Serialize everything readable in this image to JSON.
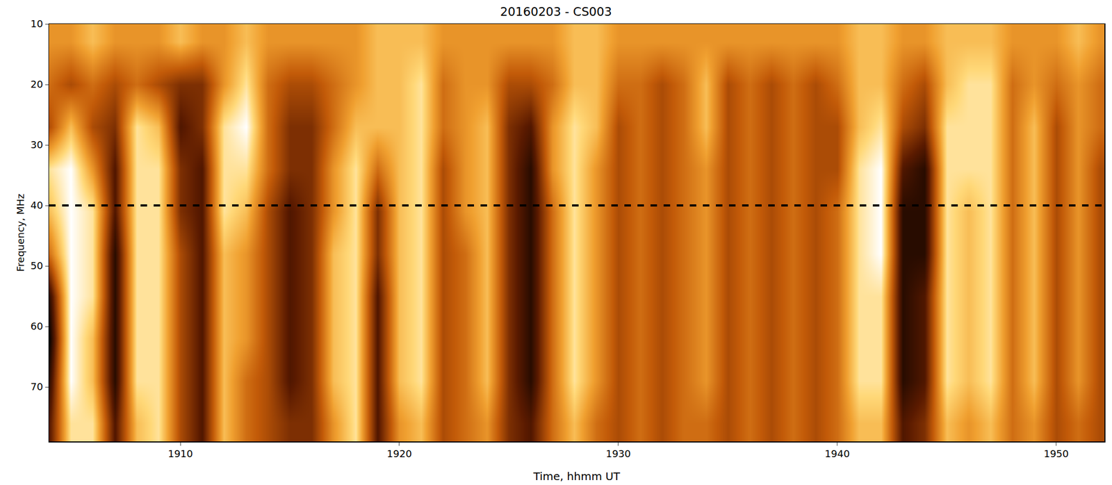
{
  "chart_data": {
    "type": "heatmap",
    "title": "20160203 - CS003",
    "x_label": "Time, hhmm UT",
    "y_label": "Frequency, MHz",
    "x": [
      1904,
      1905,
      1906,
      1907,
      1908,
      1909,
      1910,
      1911,
      1912,
      1913,
      1914,
      1915,
      1916,
      1917,
      1918,
      1919,
      1920,
      1921,
      1922,
      1923,
      1924,
      1925,
      1926,
      1927,
      1928,
      1929,
      1930,
      1931,
      1932,
      1933,
      1934,
      1935,
      1936,
      1937,
      1938,
      1939,
      1940,
      1941,
      1942,
      1943,
      1944,
      1945,
      1946,
      1947,
      1948,
      1949,
      1950,
      1951,
      1952
    ],
    "y": [
      13,
      20,
      27,
      34,
      41,
      48,
      55,
      62,
      69,
      76
    ],
    "cells": [
      [
        6,
        6,
        7,
        6,
        6,
        6,
        7,
        6,
        6,
        7,
        6,
        6,
        6,
        6,
        6,
        7,
        7,
        7,
        6,
        6,
        6,
        6,
        6,
        6,
        7,
        7,
        6,
        6,
        6,
        6,
        6,
        6,
        6,
        6,
        6,
        6,
        6,
        7,
        7,
        6,
        6,
        7,
        7,
        7,
        6,
        6,
        6,
        7,
        6
      ],
      [
        5,
        4,
        5,
        4,
        5,
        4,
        3,
        3,
        6,
        8,
        5,
        4,
        4,
        5,
        6,
        7,
        7,
        8,
        5,
        6,
        6,
        4,
        4,
        5,
        7,
        7,
        5,
        5,
        4,
        5,
        7,
        4,
        5,
        4,
        5,
        4,
        5,
        7,
        7,
        5,
        4,
        7,
        8,
        8,
        5,
        6,
        5,
        6,
        5
      ],
      [
        4,
        7,
        4,
        3,
        8,
        7,
        2,
        3,
        8,
        9,
        5,
        3,
        3,
        5,
        7,
        7,
        7,
        8,
        5,
        6,
        7,
        3,
        2,
        6,
        8,
        7,
        4,
        5,
        4,
        5,
        7,
        4,
        5,
        4,
        5,
        4,
        4,
        7,
        8,
        4,
        3,
        8,
        8,
        8,
        5,
        7,
        4,
        6,
        5
      ],
      [
        8,
        9,
        6,
        2,
        8,
        8,
        3,
        2,
        8,
        8,
        5,
        3,
        3,
        6,
        8,
        5,
        7,
        8,
        4,
        6,
        7,
        3,
        1,
        6,
        8,
        6,
        4,
        5,
        4,
        5,
        6,
        4,
        5,
        4,
        5,
        4,
        4,
        8,
        9,
        2,
        1,
        8,
        8,
        8,
        5,
        7,
        4,
        6,
        4
      ],
      [
        7,
        9,
        8,
        2,
        8,
        8,
        3,
        2,
        8,
        7,
        4,
        2,
        3,
        6,
        8,
        3,
        7,
        8,
        4,
        6,
        7,
        3,
        1,
        5,
        8,
        6,
        4,
        5,
        4,
        5,
        6,
        4,
        5,
        4,
        5,
        4,
        5,
        8,
        9,
        1,
        1,
        8,
        7,
        8,
        5,
        7,
        4,
        6,
        4
      ],
      [
        5,
        9,
        8,
        1,
        8,
        8,
        4,
        2,
        7,
        6,
        4,
        2,
        3,
        7,
        8,
        3,
        7,
        8,
        4,
        5,
        7,
        3,
        1,
        5,
        8,
        6,
        4,
        5,
        4,
        5,
        6,
        4,
        5,
        4,
        5,
        4,
        5,
        8,
        9,
        1,
        1,
        8,
        7,
        8,
        5,
        7,
        4,
        6,
        4
      ],
      [
        1,
        9,
        8,
        1,
        8,
        8,
        4,
        2,
        7,
        6,
        4,
        2,
        3,
        7,
        8,
        2,
        7,
        8,
        4,
        5,
        7,
        3,
        1,
        5,
        8,
        6,
        4,
        5,
        4,
        5,
        6,
        4,
        5,
        4,
        5,
        4,
        5,
        8,
        8,
        1,
        2,
        8,
        7,
        8,
        5,
        7,
        4,
        6,
        4
      ],
      [
        0,
        9,
        7,
        1,
        8,
        8,
        4,
        2,
        7,
        6,
        4,
        2,
        3,
        7,
        8,
        2,
        7,
        8,
        4,
        5,
        7,
        3,
        1,
        5,
        8,
        6,
        4,
        5,
        4,
        5,
        6,
        4,
        5,
        4,
        5,
        4,
        5,
        8,
        8,
        1,
        2,
        8,
        7,
        8,
        5,
        7,
        4,
        6,
        4
      ],
      [
        1,
        9,
        7,
        1,
        8,
        8,
        4,
        2,
        7,
        5,
        4,
        2,
        3,
        7,
        8,
        2,
        7,
        8,
        4,
        5,
        7,
        3,
        1,
        5,
        8,
        6,
        4,
        5,
        4,
        5,
        6,
        4,
        5,
        4,
        5,
        4,
        5,
        8,
        8,
        1,
        2,
        8,
        7,
        8,
        5,
        7,
        4,
        6,
        4
      ],
      [
        2,
        8,
        8,
        2,
        7,
        8,
        4,
        2,
        7,
        5,
        4,
        3,
        3,
        6,
        8,
        2,
        6,
        7,
        4,
        5,
        6,
        3,
        2,
        5,
        7,
        5,
        4,
        5,
        4,
        5,
        5,
        4,
        5,
        4,
        5,
        4,
        5,
        7,
        7,
        2,
        3,
        7,
        6,
        7,
        5,
        6,
        4,
        5,
        4
      ]
    ],
    "zlim": [
      0,
      9
    ],
    "xlim": [
      1904.0,
      1952.2
    ],
    "xticks": [
      1910,
      1920,
      1930,
      1940,
      1950
    ],
    "ylim": [
      79,
      10
    ],
    "yticks": [
      10,
      20,
      30,
      40,
      50,
      60,
      70
    ],
    "grid": false,
    "hline": {
      "y": 40,
      "color": "#000000",
      "line_style": "dash"
    }
  }
}
